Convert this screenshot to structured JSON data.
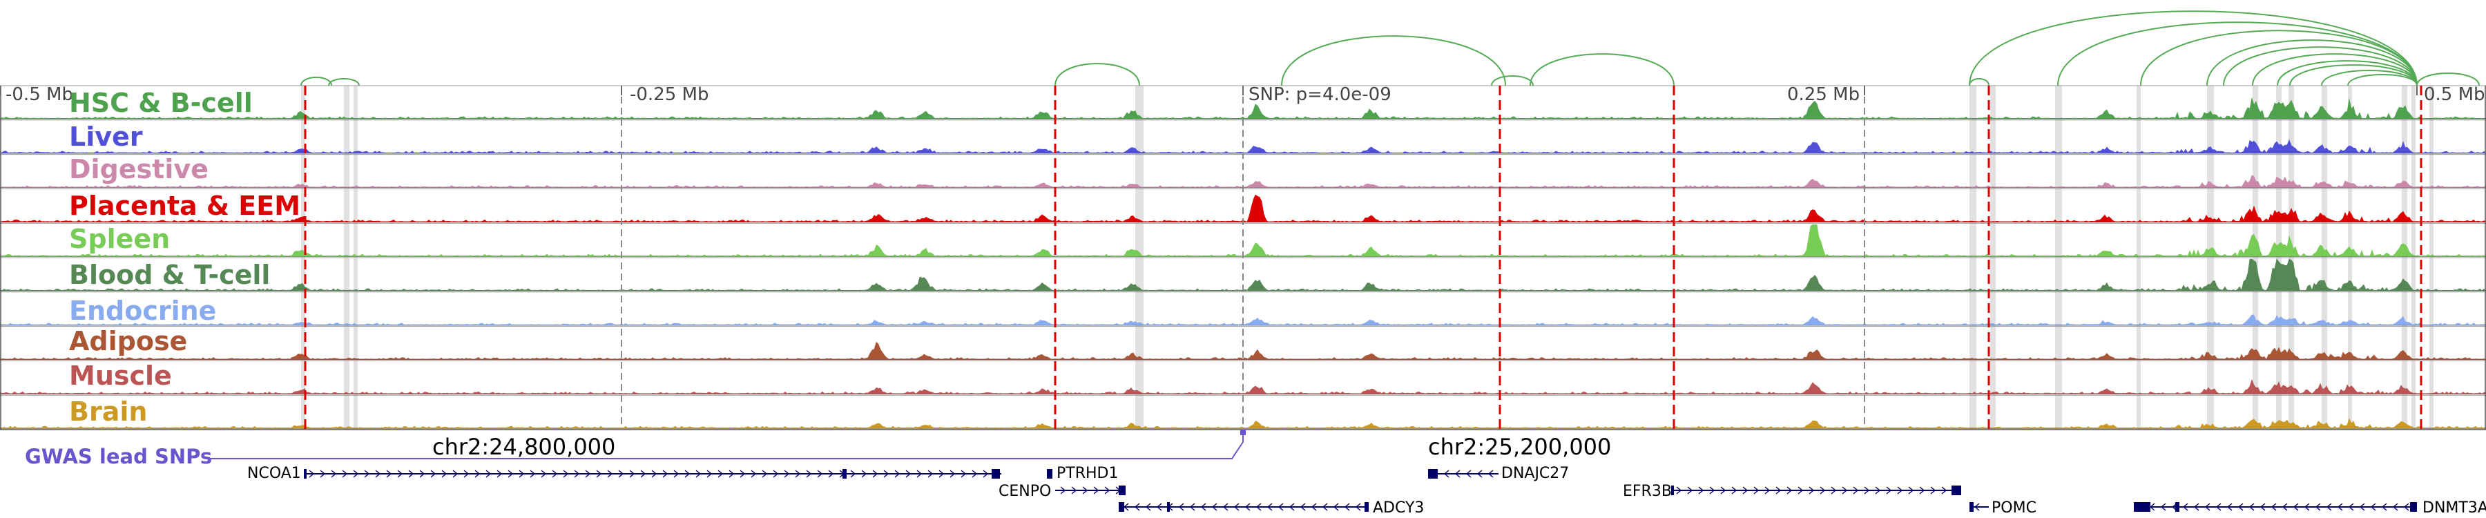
{
  "figure": {
    "scale_labels": [
      "-0.5 Mb",
      "-0.25 Mb",
      "SNP: p=4.0e-09",
      "0.25 Mb",
      "0.5 Mb"
    ],
    "tracks": [
      {
        "name": "HSC & B-cell",
        "color": "#4ea24e"
      },
      {
        "name": "Liver",
        "color": "#5050d8"
      },
      {
        "name": "Digestive",
        "color": "#cc88aa"
      },
      {
        "name": "Placenta & EEM",
        "color": "#dd0000"
      },
      {
        "name": "Spleen",
        "color": "#77cc55"
      },
      {
        "name": "Blood & T-cell",
        "color": "#558855"
      },
      {
        "name": "Endocrine",
        "color": "#88aaee"
      },
      {
        "name": "Adipose",
        "color": "#aa5533"
      },
      {
        "name": "Muscle",
        "color": "#bb5555"
      },
      {
        "name": "Brain",
        "color": "#cc9922"
      }
    ],
    "coordinates": [
      "chr2:24,800,000",
      "chr2:25,200,000"
    ],
    "gwas_label": "GWAS lead SNPs",
    "genes": [
      "NCOA1",
      "PTRHD1",
      "CENPO",
      "ADCY3",
      "DNAJC27",
      "EFR3B",
      "POMC",
      "DNMT3A"
    ],
    "colors": {
      "arc": "#55aa55",
      "red_marker": "#dd0000",
      "gwas_line": "#6655cc",
      "gene_body": "#000066"
    }
  }
}
